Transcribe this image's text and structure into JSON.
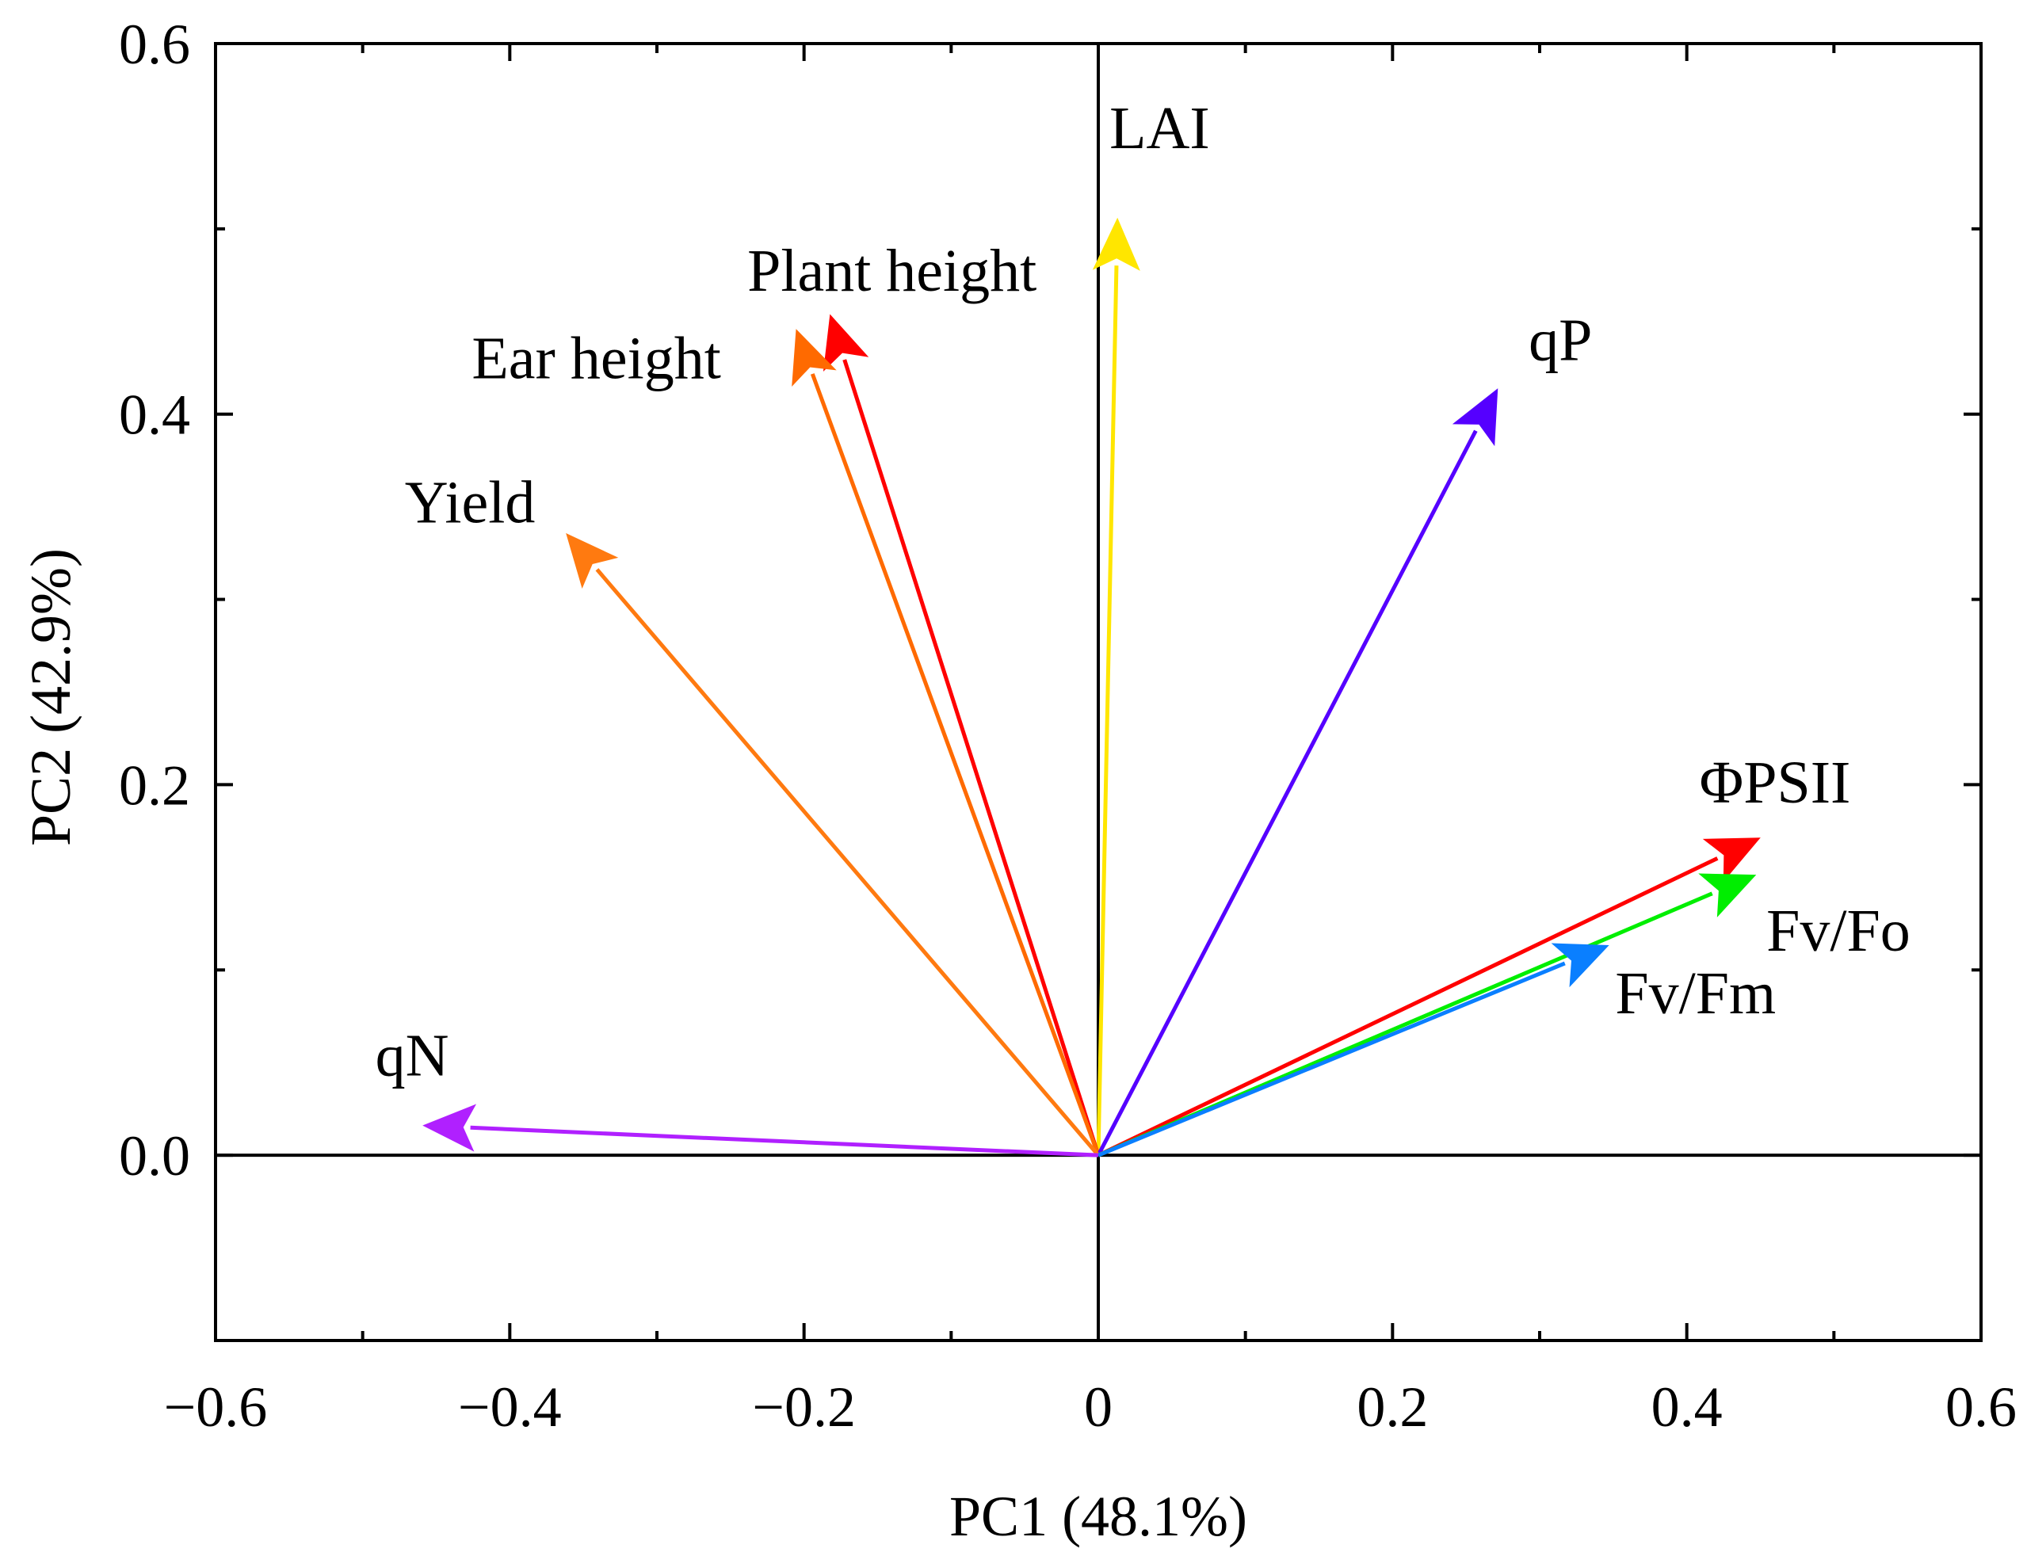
{
  "chart_data": {
    "type": "biplot",
    "title": "",
    "xlabel": "PC1 (48.1%)",
    "ylabel": "PC2 (42.9%)",
    "xlim": [
      -0.6,
      0.6
    ],
    "ylim": [
      -0.1,
      0.6
    ],
    "x_ticks": [
      -0.6,
      -0.4,
      -0.2,
      0,
      0.2,
      0.4,
      0.6
    ],
    "x_tick_labels": [
      "−0.6",
      "−0.4",
      "−0.2",
      "0",
      "0.2",
      "0.4",
      "0.6"
    ],
    "y_ticks": [
      0.0,
      0.2,
      0.4,
      0.6
    ],
    "y_tick_labels": [
      "0.0",
      "0.2",
      "0.4",
      "0.6"
    ],
    "x_minor_step": 0.1,
    "y_minor_step": 0.1,
    "zero_lines": true,
    "vectors": [
      {
        "name": "LAI",
        "x": 0.013,
        "y": 0.505,
        "color": "#FFE600"
      },
      {
        "name": "Plant height",
        "x": -0.182,
        "y": 0.453,
        "color": "#FF0000"
      },
      {
        "name": "Ear height",
        "x": -0.205,
        "y": 0.445,
        "color": "#FF6A00"
      },
      {
        "name": "qP",
        "x": 0.271,
        "y": 0.413,
        "color": "#5500FF"
      },
      {
        "name": "Yield",
        "x": -0.361,
        "y": 0.335,
        "color": "#FF7A10"
      },
      {
        "name": "ΦPSII",
        "x": 0.449,
        "y": 0.171,
        "color": "#FF0000"
      },
      {
        "name": "Fv/Fo",
        "x": 0.446,
        "y": 0.151,
        "color": "#00EE00"
      },
      {
        "name": "Fv/Fm",
        "x": 0.346,
        "y": 0.113,
        "color": "#0A7FFF"
      },
      {
        "name": "qN",
        "x": -0.458,
        "y": 0.016,
        "color": "#B020FF"
      }
    ]
  }
}
